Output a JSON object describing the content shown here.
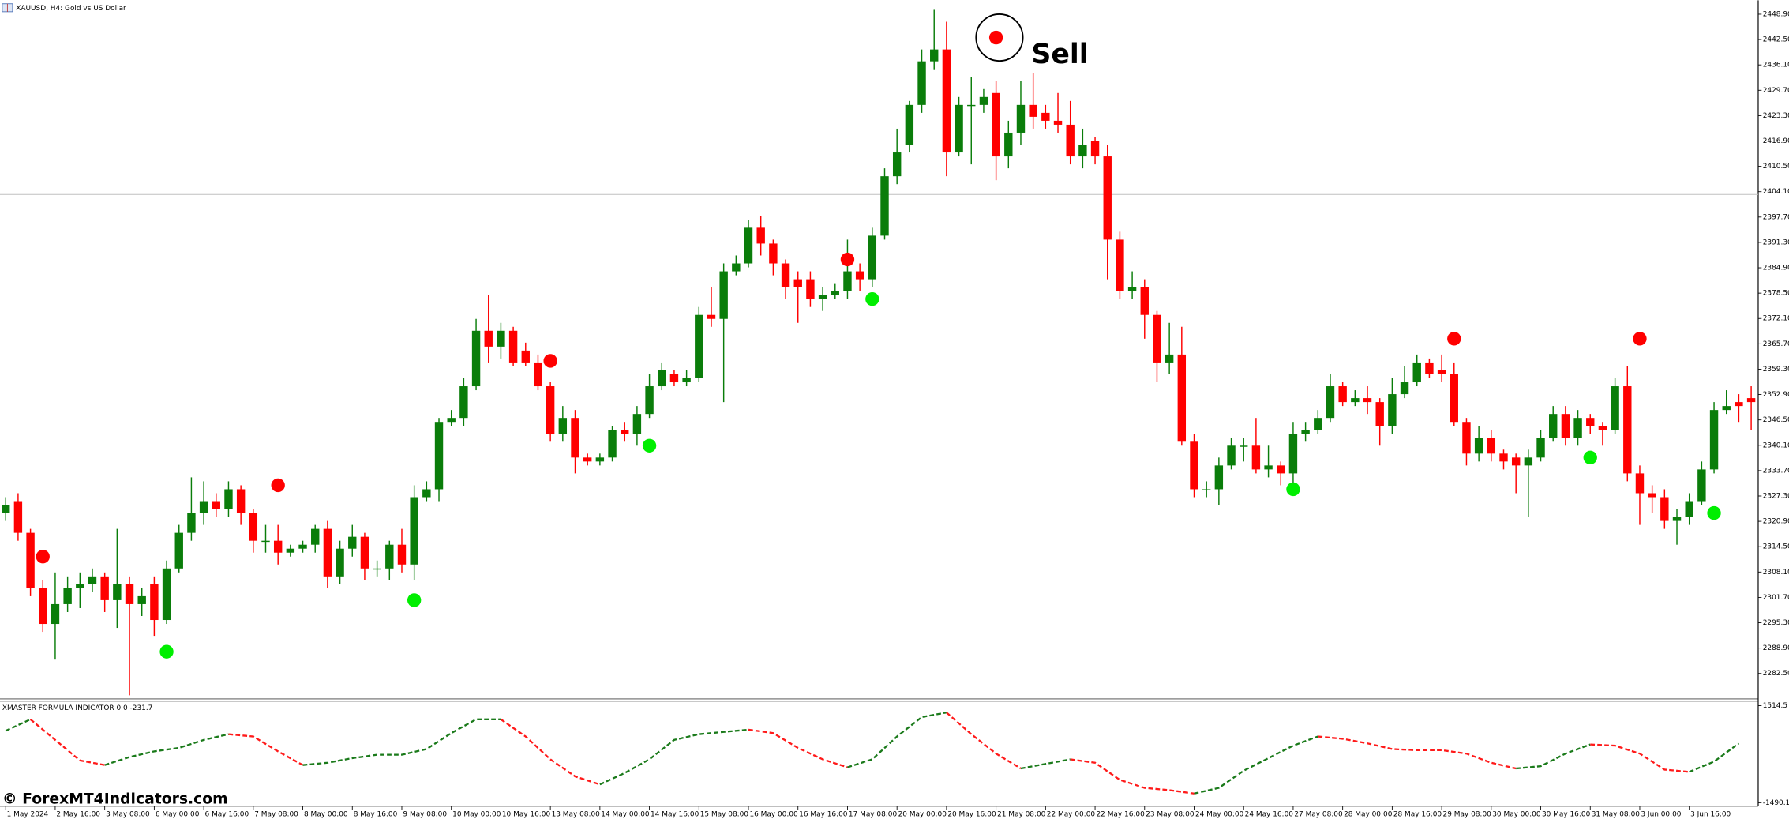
{
  "chart_data": [
    {
      "type": "candlestick",
      "title": "XAUUSD, H4:  Gold vs US Dollar",
      "annotation": "Sell",
      "up_color": "#0a7d0a",
      "down_color": "#ff0000",
      "sell_color": "#ff0000",
      "buy_color": "#00ee00",
      "price_line_color": "#c0c0c0",
      "ylim": [
        2276.1,
        2452.4
      ],
      "yticks": [
        {
          "value": 2448.9,
          "label": "2448.90"
        },
        {
          "value": 2442.5,
          "label": "2442.50"
        },
        {
          "value": 2436.1,
          "label": "2436.10"
        },
        {
          "value": 2429.7,
          "label": "2429.70"
        },
        {
          "value": 2423.3,
          "label": "2423.30"
        },
        {
          "value": 2416.9,
          "label": "2416.90"
        },
        {
          "value": 2410.5,
          "label": "2410.50"
        },
        {
          "value": 2404.1,
          "label": "2404.10"
        },
        {
          "value": 2397.7,
          "label": "2397.70"
        },
        {
          "value": 2391.3,
          "label": "2391.30"
        },
        {
          "value": 2384.9,
          "label": "2384.90"
        },
        {
          "value": 2378.5,
          "label": "2378.50"
        },
        {
          "value": 2372.1,
          "label": "2372.10"
        },
        {
          "value": 2365.7,
          "label": "2365.70"
        },
        {
          "value": 2359.3,
          "label": "2359.30"
        },
        {
          "value": 2352.9,
          "label": "2352.90"
        },
        {
          "value": 2346.5,
          "label": "2346.50"
        },
        {
          "value": 2340.1,
          "label": "2340.10"
        },
        {
          "value": 2333.7,
          "label": "2333.70"
        },
        {
          "value": 2327.3,
          "label": "2327.30"
        },
        {
          "value": 2320.9,
          "label": "2320.90"
        },
        {
          "value": 2314.5,
          "label": "2314.50"
        },
        {
          "value": 2308.1,
          "label": "2308.10"
        },
        {
          "value": 2301.7,
          "label": "2301.70"
        },
        {
          "value": 2295.3,
          "label": "2295.30"
        },
        {
          "value": 2288.9,
          "label": "2288.90"
        },
        {
          "value": 2282.5,
          "label": "2282.50"
        }
      ],
      "price_line": 2403.4,
      "categories": [
        "1 May 2024",
        null,
        null,
        null,
        "2 May 16:00",
        null,
        null,
        null,
        "3 May 08:00",
        null,
        null,
        null,
        "6 May 00:00",
        null,
        null,
        null,
        "6 May 16:00",
        null,
        null,
        null,
        "7 May 08:00",
        null,
        null,
        null,
        "8 May 00:00",
        null,
        null,
        null,
        "8 May 16:00",
        null,
        null,
        null,
        "9 May 08:00",
        null,
        null,
        null,
        "10 May 00:00",
        null,
        null,
        null,
        "10 May 16:00",
        null,
        null,
        null,
        "13 May 08:00",
        null,
        null,
        null,
        "14 May 00:00",
        null,
        null,
        null,
        "14 May 16:00",
        null,
        null,
        null,
        "15 May 08:00",
        null,
        null,
        null,
        "16 May 00:00",
        null,
        null,
        null,
        "16 May 16:00",
        null,
        null,
        null,
        "17 May 08:00",
        null,
        null,
        null,
        "20 May 00:00",
        null,
        null,
        null,
        "20 May 16:00",
        null,
        null,
        null,
        "21 May 08:00",
        null,
        null,
        null,
        "22 May 00:00",
        null,
        null,
        null,
        "22 May 16:00",
        null,
        null,
        null,
        "23 May 08:00",
        null,
        null,
        null,
        "24 May 00:00",
        null,
        null,
        null,
        "24 May 16:00",
        null,
        null,
        null,
        "27 May 08:00",
        null,
        null,
        null,
        "28 May 00:00",
        null,
        null,
        null,
        "28 May 16:00",
        null,
        null,
        null,
        "29 May 08:00",
        null,
        null,
        null,
        "30 May 00:00",
        null,
        null,
        null,
        "30 May 16:00",
        null,
        null,
        null,
        "31 May 08:00",
        null,
        null,
        null,
        "3 Jun 00:00",
        null,
        null,
        null,
        "3 Jun 16:00",
        null,
        null,
        null,
        null,
        null
      ],
      "open": [
        2323,
        2326,
        2318,
        2304,
        2295,
        2300,
        2304,
        2305,
        2307,
        2301,
        2305,
        2300,
        2305,
        2296,
        2309,
        2318,
        2323,
        2326,
        2324,
        2329,
        2323,
        2316,
        2316,
        2313,
        2314,
        2315,
        2319,
        2307,
        2314,
        2317,
        2309,
        2309,
        2315,
        2310,
        2327,
        2329,
        2346,
        2347,
        2355,
        2369,
        2365,
        2369,
        2364,
        2361,
        2355,
        2343,
        2347,
        2337,
        2336,
        2337,
        2344,
        2343,
        2348,
        2355,
        2358,
        2356,
        2357,
        2373,
        2372,
        2384,
        2386,
        2395,
        2391,
        2386,
        2382,
        2382,
        2377,
        2378,
        2379,
        2384,
        2382,
        2393,
        2408,
        2416,
        2426,
        2437,
        2440,
        2414,
        2426,
        2426,
        2429,
        2413,
        2419,
        2426,
        2424,
        2422,
        2421,
        2413,
        2417,
        2413,
        2392,
        2379,
        2380,
        2373,
        2361,
        2363,
        2341,
        2329,
        2329,
        2335,
        2340,
        2340,
        2334,
        2335,
        2333,
        2343,
        2344,
        2347,
        2355,
        2351,
        2352,
        2351,
        2345,
        2353,
        2356,
        2361,
        2359,
        2358,
        2346,
        2338,
        2342,
        2338,
        2337,
        2335,
        2337,
        2342,
        2348,
        2342,
        2347,
        2345,
        2344,
        2355,
        2333,
        2328,
        2327,
        2321,
        2322,
        2326,
        2334,
        2349,
        2351,
        2352
      ],
      "high": [
        2327,
        2328,
        2319,
        2306,
        2308,
        2307,
        2308,
        2309,
        2308,
        2319,
        2307,
        2304,
        2307,
        2311,
        2320,
        2332,
        2331,
        2328,
        2331,
        2330,
        2324,
        2320,
        2320,
        2315,
        2316,
        2320,
        2321,
        2316,
        2320,
        2318,
        2311,
        2316,
        2319,
        2330,
        2331,
        2347,
        2349,
        2357,
        2372,
        2378,
        2371,
        2370,
        2366,
        2363,
        2356,
        2350,
        2349,
        2338,
        2338,
        2345,
        2346,
        2350,
        2358,
        2361,
        2359,
        2359,
        2375,
        2380,
        2386,
        2388,
        2397,
        2398,
        2392,
        2387,
        2384,
        2384,
        2380,
        2381,
        2392,
        2386,
        2395,
        2410,
        2420,
        2427,
        2440,
        2450,
        2447,
        2428,
        2433,
        2430,
        2432,
        2422,
        2432,
        2434,
        2426,
        2429,
        2427,
        2420,
        2418,
        2416,
        2394,
        2384,
        2382,
        2374,
        2371,
        2370,
        2343,
        2331,
        2337,
        2342,
        2342,
        2347,
        2340,
        2336,
        2346,
        2346,
        2349,
        2358,
        2356,
        2354,
        2355,
        2352,
        2357,
        2360,
        2363,
        2362,
        2363,
        2361,
        2347,
        2345,
        2344,
        2339,
        2338,
        2339,
        2344,
        2350,
        2350,
        2349,
        2348,
        2346,
        2357,
        2360,
        2335,
        2330,
        2329,
        2324,
        2328,
        2336,
        2351,
        2354,
        2353,
        2355
      ],
      "low": [
        2321,
        2316,
        2302,
        2293,
        2286,
        2298,
        2299,
        2303,
        2298,
        2294,
        2277,
        2297,
        2292,
        2295,
        2308,
        2316,
        2320,
        2322,
        2322,
        2320,
        2313,
        2313,
        2310,
        2312,
        2313,
        2313,
        2304,
        2305,
        2312,
        2306,
        2307,
        2306,
        2308,
        2306,
        2326,
        2326,
        2345,
        2345,
        2354,
        2361,
        2362,
        2360,
        2360,
        2354,
        2341,
        2341,
        2333,
        2335,
        2335,
        2336,
        2341,
        2340,
        2347,
        2354,
        2355,
        2355,
        2356,
        2370,
        2351,
        2383,
        2385,
        2388,
        2383,
        2377,
        2371,
        2375,
        2374,
        2377,
        2377,
        2379,
        2380,
        2392,
        2406,
        2414,
        2424,
        2435,
        2408,
        2413,
        2411,
        2424,
        2407,
        2410,
        2416,
        2420,
        2420,
        2419,
        2411,
        2410,
        2411,
        2382,
        2377,
        2377,
        2367,
        2356,
        2358,
        2340,
        2327,
        2327,
        2325,
        2334,
        2336,
        2333,
        2332,
        2330,
        2330,
        2341,
        2343,
        2346,
        2350,
        2350,
        2348,
        2340,
        2343,
        2352,
        2355,
        2357,
        2356,
        2345,
        2335,
        2336,
        2336,
        2334,
        2328,
        2322,
        2336,
        2341,
        2340,
        2340,
        2343,
        2340,
        2343,
        2331,
        2320,
        2323,
        2319,
        2315,
        2320,
        2325,
        2333,
        2348,
        2346,
        2344
      ],
      "close": [
        2325,
        2318,
        2304,
        2295,
        2300,
        2304,
        2305,
        2307,
        2301,
        2305,
        2300,
        2302,
        2296,
        2309,
        2318,
        2323,
        2326,
        2324,
        2329,
        2323,
        2316,
        2316,
        2313,
        2314,
        2315,
        2319,
        2307,
        2314,
        2317,
        2309,
        2309,
        2315,
        2310,
        2327,
        2329,
        2346,
        2347,
        2355,
        2369,
        2365,
        2369,
        2361,
        2361,
        2355,
        2343,
        2347,
        2337,
        2336,
        2337,
        2344,
        2343,
        2348,
        2355,
        2359,
        2356,
        2357,
        2373,
        2372,
        2384,
        2386,
        2395,
        2391,
        2386,
        2380,
        2380,
        2377,
        2378,
        2379,
        2384,
        2382,
        2393,
        2408,
        2414,
        2426,
        2437,
        2440,
        2414,
        2426,
        2426,
        2428,
        2413,
        2419,
        2426,
        2423,
        2422,
        2421,
        2413,
        2416,
        2413,
        2392,
        2379,
        2380,
        2373,
        2361,
        2363,
        2341,
        2329,
        2329,
        2335,
        2340,
        2340,
        2334,
        2335,
        2333,
        2343,
        2344,
        2347,
        2355,
        2351,
        2352,
        2351,
        2345,
        2353,
        2356,
        2361,
        2358,
        2358,
        2346,
        2338,
        2342,
        2338,
        2336,
        2335,
        2337,
        2342,
        2348,
        2342,
        2347,
        2345,
        2344,
        2355,
        2333,
        2328,
        2327,
        2321,
        2322,
        2326,
        2334,
        2349,
        2350,
        2350,
        2351
      ],
      "sell_signals": [
        {
          "index": 3,
          "price": 2312
        },
        {
          "index": 22,
          "price": 2330
        },
        {
          "index": 44,
          "price": 2361.4
        },
        {
          "index": 68,
          "price": 2387
        },
        {
          "index": 80,
          "price": 2443
        },
        {
          "index": 117,
          "price": 2367
        },
        {
          "index": 132,
          "price": 2367
        }
      ],
      "buy_signals": [
        {
          "index": 13,
          "price": 2288
        },
        {
          "index": 33,
          "price": 2301
        },
        {
          "index": 52,
          "price": 2340
        },
        {
          "index": 70,
          "price": 2377
        },
        {
          "index": 104,
          "price": 2329
        },
        {
          "index": 128,
          "price": 2337
        },
        {
          "index": 138,
          "price": 2323
        }
      ]
    },
    {
      "type": "line",
      "title": "XMASTER FORMULA INDICATOR 0.0 -231.7",
      "rising_color": "#1a7a1a",
      "falling_color": "#ff1a1a",
      "ylim": [
        -1490.1,
        1514.5
      ],
      "yticks": [
        -1490.1,
        1514.5
      ],
      "x": [
        0,
        2,
        4,
        6,
        8,
        10,
        12,
        14,
        16,
        18,
        20,
        22,
        24,
        26,
        28,
        30,
        32,
        34,
        36,
        38,
        40,
        42,
        44,
        46,
        48,
        50,
        52,
        54,
        56,
        58,
        60,
        62,
        64,
        66,
        68,
        70,
        72,
        74,
        76,
        78,
        80,
        82,
        84,
        86,
        88,
        90,
        92,
        94,
        96,
        98,
        100,
        102,
        104,
        106,
        108,
        110,
        112,
        114,
        116,
        118,
        120,
        122,
        124,
        126,
        128,
        130,
        132,
        134,
        136,
        138,
        140
      ],
      "values": [
        737,
        1091,
        454,
        -182,
        -324,
        -76,
        100,
        207,
        454,
        631,
        560,
        100,
        -324,
        -253,
        -111,
        -5,
        -5,
        171,
        666,
        1091,
        1091,
        560,
        -147,
        -677,
        -925,
        -571,
        -147,
        454,
        631,
        701,
        772,
        666,
        207,
        -147,
        -394,
        -147,
        560,
        1161,
        1302,
        631,
        30,
        -430,
        -288,
        -147,
        -253,
        -783,
        -1031,
        -1101,
        -1207,
        -1031,
        -500,
        -111,
        277,
        560,
        489,
        348,
        171,
        136,
        136,
        30,
        -253,
        -430,
        -359,
        30,
        313,
        277,
        30,
        -465,
        -536,
        -217,
        348
      ]
    },
    {
      "type": "text",
      "watermark": "© ForexMT4Indicators.com"
    }
  ]
}
